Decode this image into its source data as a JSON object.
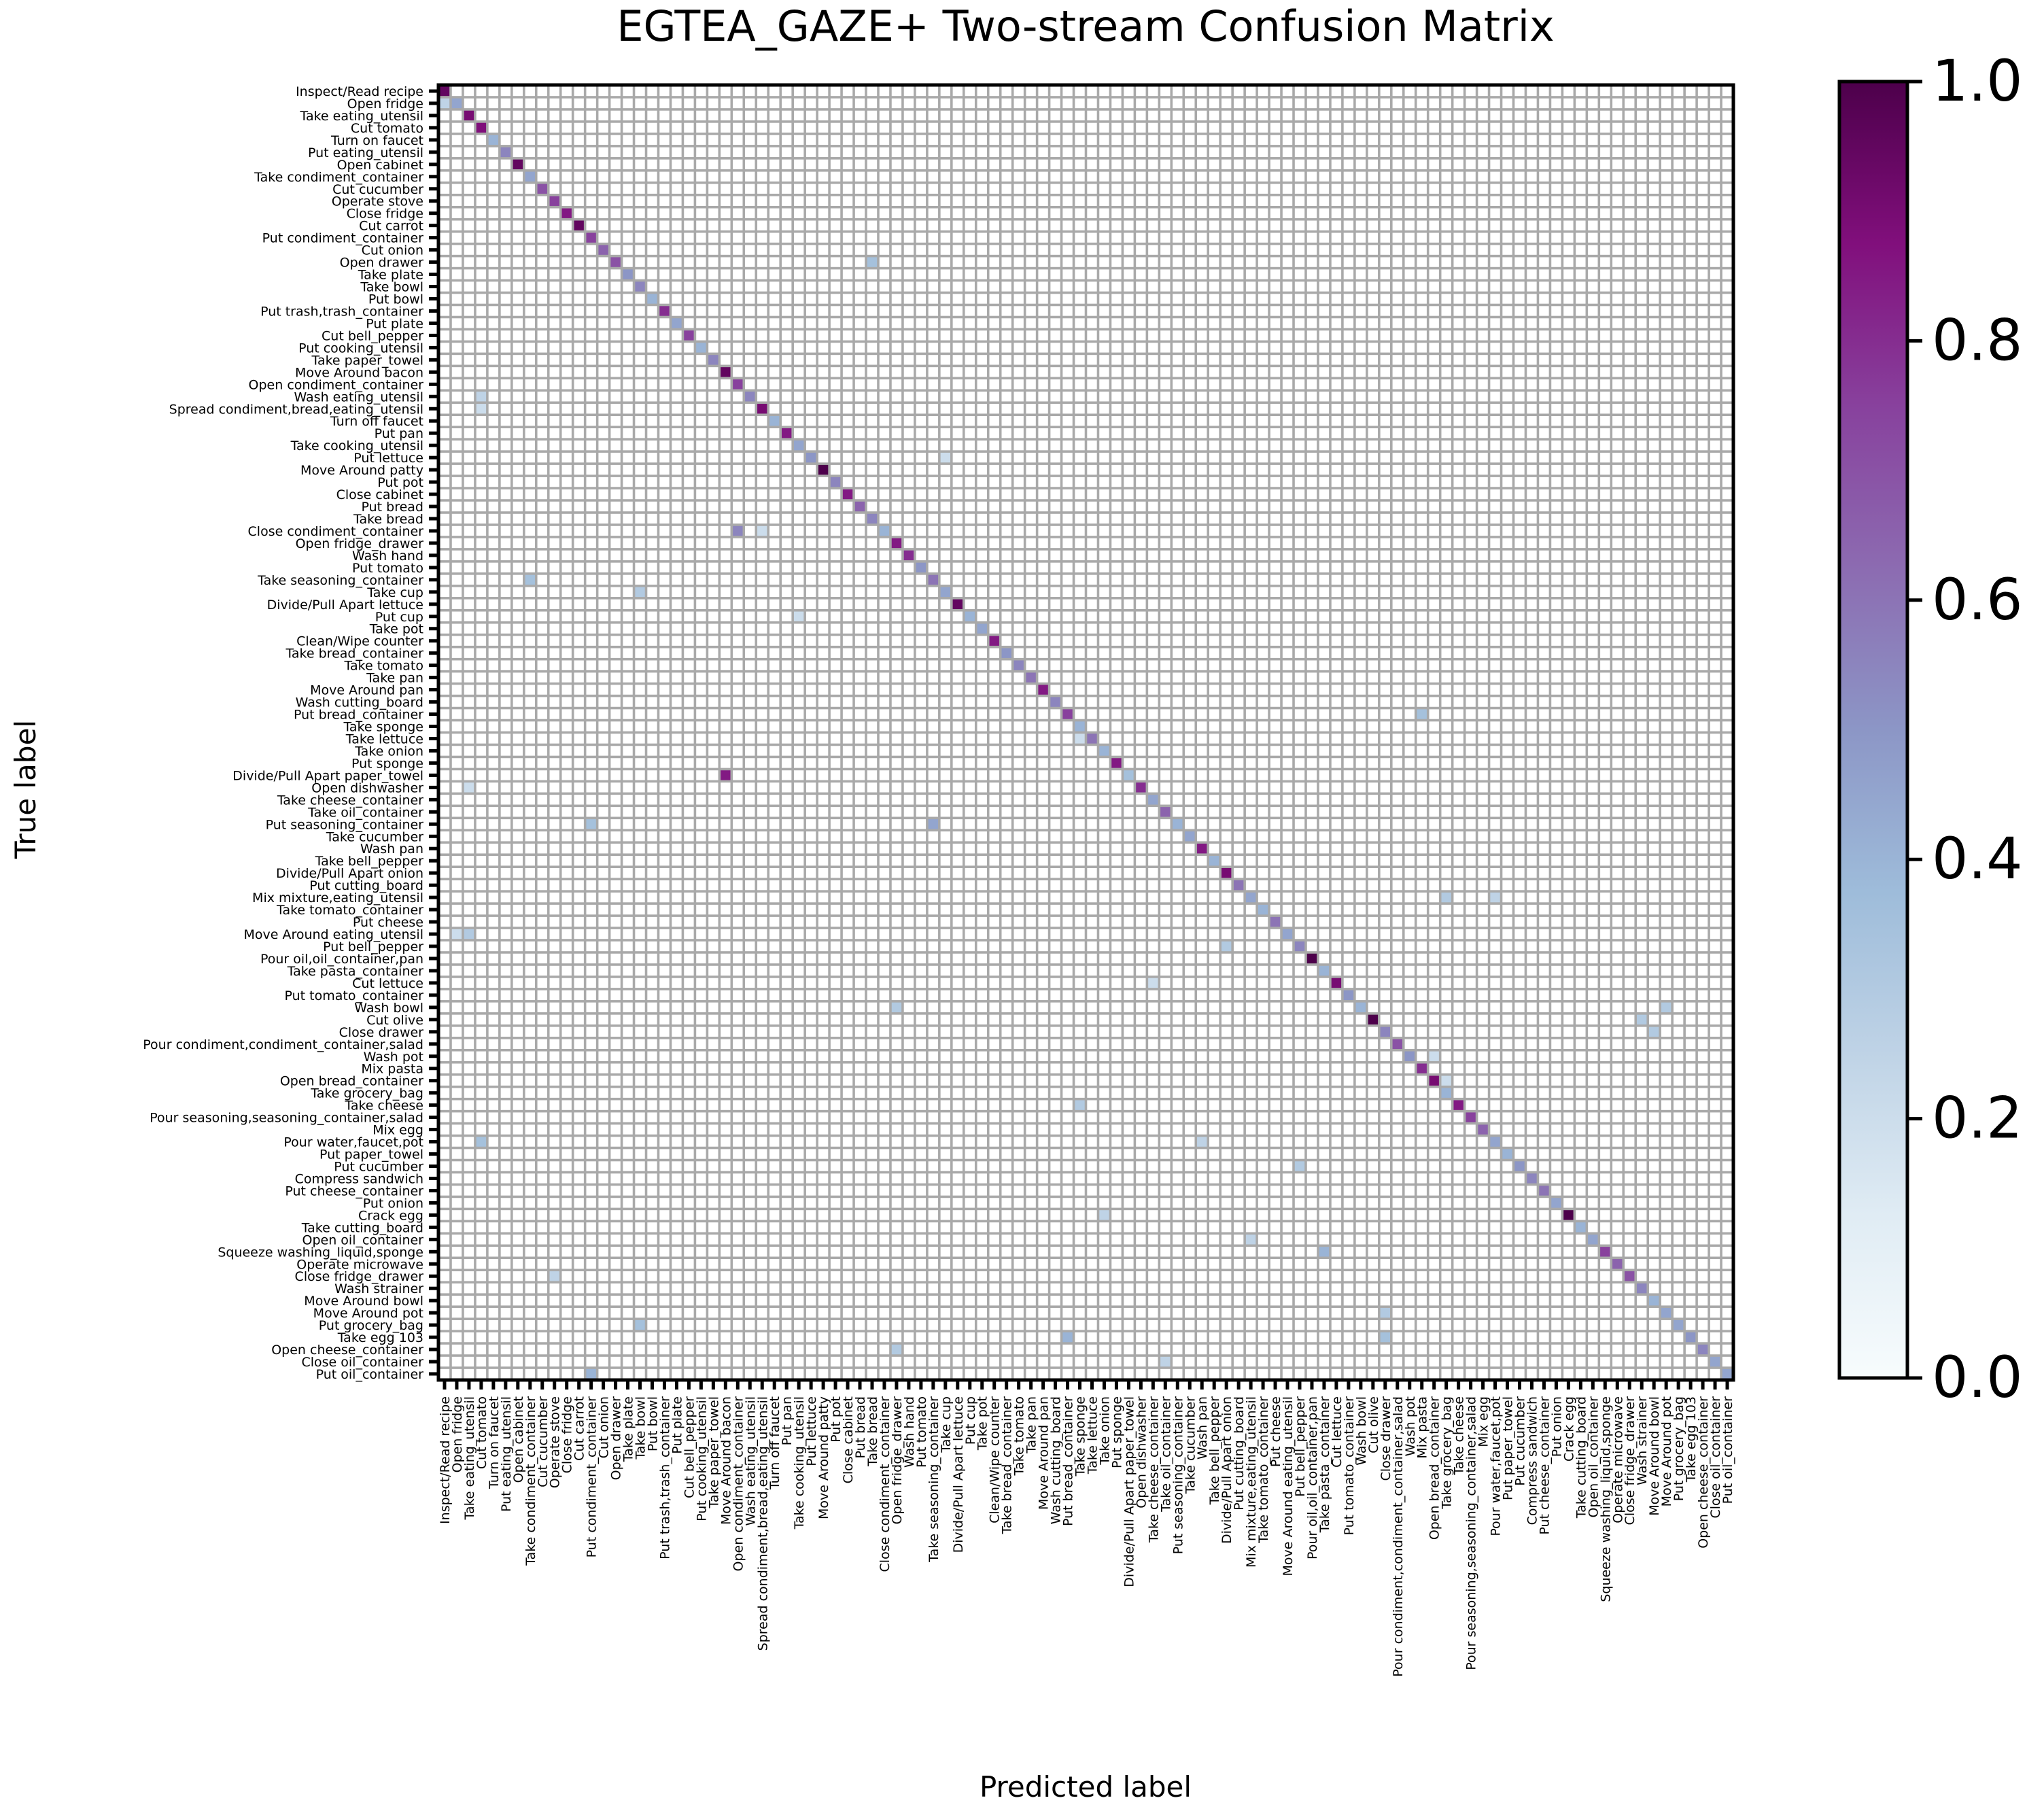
{
  "chart_data": {
    "type": "heatmap",
    "title": "EGTEA_GAZE+ Two-stream Confusion Matrix",
    "xlabel": "Predicted label",
    "ylabel": "True label",
    "labels": [
      "Inspect/Read recipe",
      "Open fridge",
      "Take eating_utensil",
      "Cut tomato",
      "Turn on faucet",
      "Put eating_utensil",
      "Open cabinet",
      "Take condiment_container",
      "Cut cucumber",
      "Operate stove",
      "Close fridge",
      "Cut carrot",
      "Put condiment_container",
      "Cut onion",
      "Open drawer",
      "Take plate",
      "Take bowl",
      "Put bowl",
      "Put trash,trash_container",
      "Put plate",
      "Cut bell_pepper",
      "Put cooking_utensil",
      "Take paper_towel",
      "Move Around bacon",
      "Open condiment_container",
      "Wash eating_utensil",
      "Spread condiment,bread,eating_utensil",
      "Turn off faucet",
      "Put pan",
      "Take cooking_utensil",
      "Put lettuce",
      "Move Around patty",
      "Put pot",
      "Close cabinet",
      "Put bread",
      "Take bread",
      "Close condiment_container",
      "Open fridge_drawer",
      "Wash hand",
      "Put tomato",
      "Take seasoning_container",
      "Take cup",
      "Divide/Pull Apart lettuce",
      "Put cup",
      "Take pot",
      "Clean/Wipe counter",
      "Take bread_container",
      "Take tomato",
      "Take pan",
      "Move Around pan",
      "Wash cutting_board",
      "Put bread_container",
      "Take sponge",
      "Take lettuce",
      "Take onion",
      "Put sponge",
      "Divide/Pull Apart paper_towel",
      "Open dishwasher",
      "Take cheese_container",
      "Take oil_container",
      "Put seasoning_container",
      "Take cucumber",
      "Wash pan",
      "Take bell_pepper",
      "Divide/Pull Apart onion",
      "Put cutting_board",
      "Mix mixture,eating_utensil",
      "Take tomato_container",
      "Put cheese",
      "Move Around eating_utensil",
      "Put bell_pepper",
      "Pour oil,oil_container,pan",
      "Take pasta_container",
      "Cut lettuce",
      "Put tomato_container",
      "Wash bowl",
      "Cut olive",
      "Close drawer",
      "Pour condiment,condiment_container,salad",
      "Wash pot",
      "Mix pasta",
      "Open bread_container",
      "Take grocery_bag",
      "Take cheese",
      "Pour seasoning,seasoning_container,salad",
      "Mix egg",
      "Pour water,faucet,pot",
      "Put paper_towel",
      "Put cucumber",
      "Compress sandwich",
      "Put cheese_container",
      "Put onion",
      "Crack egg",
      "Take cutting_board",
      "Open oil_container",
      "Squeeze washing_liquid,sponge",
      "Operate microwave",
      "Close fridge_drawer",
      "Wash strainer",
      "Move Around bowl",
      "Move Around pot",
      "Put grocery_bag",
      "Take egg 103",
      "Open cheese_container",
      "Close oil_container",
      "Put oil_container"
    ],
    "diagonal": [
      0.95,
      0.45,
      0.9,
      0.88,
      0.4,
      0.55,
      0.95,
      0.45,
      0.7,
      0.75,
      0.85,
      0.95,
      0.75,
      0.65,
      0.7,
      0.5,
      0.55,
      0.4,
      0.8,
      0.45,
      0.75,
      0.4,
      0.55,
      0.95,
      0.75,
      0.55,
      0.9,
      0.4,
      0.85,
      0.45,
      0.5,
      1.0,
      0.55,
      0.85,
      0.65,
      0.55,
      0.4,
      0.85,
      0.8,
      0.5,
      0.6,
      0.45,
      0.95,
      0.4,
      0.45,
      0.85,
      0.5,
      0.55,
      0.6,
      0.85,
      0.55,
      0.75,
      0.4,
      0.6,
      0.4,
      0.85,
      0.35,
      0.8,
      0.45,
      0.65,
      0.4,
      0.45,
      0.85,
      0.4,
      0.9,
      0.6,
      0.45,
      0.4,
      0.6,
      0.45,
      0.55,
      1.0,
      0.4,
      0.9,
      0.5,
      0.4,
      1.0,
      0.55,
      0.7,
      0.5,
      0.8,
      0.9,
      0.4,
      0.85,
      0.75,
      0.65,
      0.45,
      0.4,
      0.5,
      0.55,
      0.6,
      0.45,
      1.0,
      0.4,
      0.45,
      0.75,
      0.65,
      0.7,
      0.55,
      0.4,
      0.45,
      0.45,
      0.5,
      0.55,
      0.45,
      0.45
    ],
    "off_diagonal": [
      {
        "true": 1,
        "pred": 0,
        "value": 0.25
      },
      {
        "true": 14,
        "pred": 35,
        "value": 0.35
      },
      {
        "true": 25,
        "pred": 3,
        "value": 0.25
      },
      {
        "true": 26,
        "pred": 3,
        "value": 0.2
      },
      {
        "true": 30,
        "pred": 41,
        "value": 0.2
      },
      {
        "true": 36,
        "pred": 24,
        "value": 0.55
      },
      {
        "true": 36,
        "pred": 26,
        "value": 0.2
      },
      {
        "true": 40,
        "pred": 7,
        "value": 0.35
      },
      {
        "true": 41,
        "pred": 16,
        "value": 0.3
      },
      {
        "true": 43,
        "pred": 29,
        "value": 0.2
      },
      {
        "true": 51,
        "pred": 80,
        "value": 0.35
      },
      {
        "true": 53,
        "pred": 52,
        "value": 0.2
      },
      {
        "true": 56,
        "pred": 23,
        "value": 0.85
      },
      {
        "true": 57,
        "pred": 2,
        "value": 0.2
      },
      {
        "true": 60,
        "pred": 12,
        "value": 0.35
      },
      {
        "true": 60,
        "pred": 40,
        "value": 0.45
      },
      {
        "true": 66,
        "pred": 82,
        "value": 0.3
      },
      {
        "true": 66,
        "pred": 86,
        "value": 0.25
      },
      {
        "true": 69,
        "pred": 2,
        "value": 0.3
      },
      {
        "true": 69,
        "pred": 1,
        "value": 0.2
      },
      {
        "true": 70,
        "pred": 64,
        "value": 0.3
      },
      {
        "true": 73,
        "pred": 58,
        "value": 0.2
      },
      {
        "true": 75,
        "pred": 37,
        "value": 0.3
      },
      {
        "true": 75,
        "pred": 100,
        "value": 0.3
      },
      {
        "true": 76,
        "pred": 98,
        "value": 0.3
      },
      {
        "true": 77,
        "pred": 99,
        "value": 0.3
      },
      {
        "true": 79,
        "pred": 81,
        "value": 0.2
      },
      {
        "true": 81,
        "pred": 82,
        "value": 0.2
      },
      {
        "true": 83,
        "pred": 52,
        "value": 0.3
      },
      {
        "true": 86,
        "pred": 3,
        "value": 0.35
      },
      {
        "true": 86,
        "pred": 62,
        "value": 0.25
      },
      {
        "true": 88,
        "pred": 70,
        "value": 0.3
      },
      {
        "true": 92,
        "pred": 54,
        "value": 0.25
      },
      {
        "true": 94,
        "pred": 66,
        "value": 0.25
      },
      {
        "true": 95,
        "pred": 72,
        "value": 0.4
      },
      {
        "true": 97,
        "pred": 9,
        "value": 0.25
      },
      {
        "true": 100,
        "pred": 77,
        "value": 0.3
      },
      {
        "true": 101,
        "pred": 16,
        "value": 0.35
      },
      {
        "true": 102,
        "pred": 51,
        "value": 0.4
      },
      {
        "true": 102,
        "pred": 77,
        "value": 0.35
      },
      {
        "true": 103,
        "pred": 37,
        "value": 0.3
      },
      {
        "true": 104,
        "pred": 59,
        "value": 0.25
      },
      {
        "true": 105,
        "pred": 12,
        "value": 0.4
      }
    ],
    "colorbar": {
      "vmin": 0.0,
      "vmax": 1.0,
      "ticks": [
        "0.0",
        "0.2",
        "0.4",
        "0.6",
        "0.8",
        "1.0"
      ]
    },
    "colormap": [
      "#f7fcfd",
      "#e0ecf4",
      "#bfd3e6",
      "#9ebcda",
      "#8c96c6",
      "#8c6bb1",
      "#88419d",
      "#810f7c",
      "#4d004b"
    ],
    "grid_color": "#a9a9a9",
    "grid": true
  }
}
